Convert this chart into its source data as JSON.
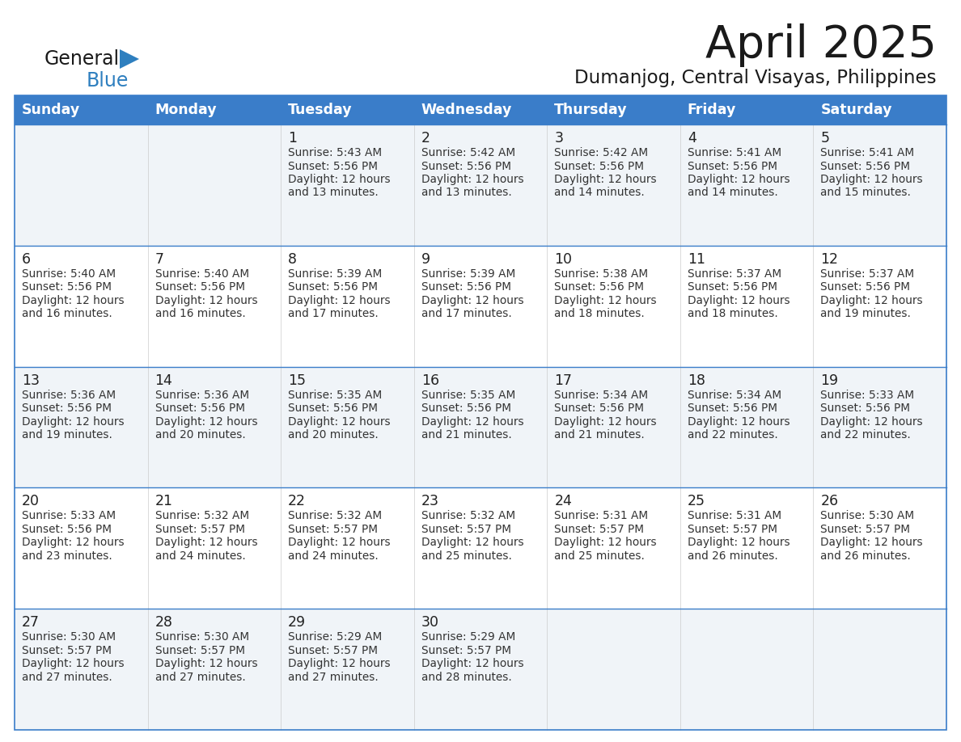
{
  "title": "April 2025",
  "subtitle": "Dumanjog, Central Visayas, Philippines",
  "days_of_week": [
    "Sunday",
    "Monday",
    "Tuesday",
    "Wednesday",
    "Thursday",
    "Friday",
    "Saturday"
  ],
  "header_bg_color": "#3A7DC9",
  "header_text_color": "#FFFFFF",
  "border_color": "#3A7DC9",
  "row_bg_even": "#F0F4F8",
  "row_bg_odd": "#FFFFFF",
  "text_color": "#333333",
  "day_num_color": "#222222",
  "logo_general_color": "#1a1a1a",
  "logo_blue_color": "#2E7FBF",
  "title_color": "#1a1a1a",
  "calendar_data": [
    [
      null,
      null,
      {
        "day": 1,
        "sunrise": "5:43 AM",
        "sunset": "5:56 PM",
        "daylight_hours": 12,
        "daylight_minutes": 13
      },
      {
        "day": 2,
        "sunrise": "5:42 AM",
        "sunset": "5:56 PM",
        "daylight_hours": 12,
        "daylight_minutes": 13
      },
      {
        "day": 3,
        "sunrise": "5:42 AM",
        "sunset": "5:56 PM",
        "daylight_hours": 12,
        "daylight_minutes": 14
      },
      {
        "day": 4,
        "sunrise": "5:41 AM",
        "sunset": "5:56 PM",
        "daylight_hours": 12,
        "daylight_minutes": 14
      },
      {
        "day": 5,
        "sunrise": "5:41 AM",
        "sunset": "5:56 PM",
        "daylight_hours": 12,
        "daylight_minutes": 15
      }
    ],
    [
      {
        "day": 6,
        "sunrise": "5:40 AM",
        "sunset": "5:56 PM",
        "daylight_hours": 12,
        "daylight_minutes": 16
      },
      {
        "day": 7,
        "sunrise": "5:40 AM",
        "sunset": "5:56 PM",
        "daylight_hours": 12,
        "daylight_minutes": 16
      },
      {
        "day": 8,
        "sunrise": "5:39 AM",
        "sunset": "5:56 PM",
        "daylight_hours": 12,
        "daylight_minutes": 17
      },
      {
        "day": 9,
        "sunrise": "5:39 AM",
        "sunset": "5:56 PM",
        "daylight_hours": 12,
        "daylight_minutes": 17
      },
      {
        "day": 10,
        "sunrise": "5:38 AM",
        "sunset": "5:56 PM",
        "daylight_hours": 12,
        "daylight_minutes": 18
      },
      {
        "day": 11,
        "sunrise": "5:37 AM",
        "sunset": "5:56 PM",
        "daylight_hours": 12,
        "daylight_minutes": 18
      },
      {
        "day": 12,
        "sunrise": "5:37 AM",
        "sunset": "5:56 PM",
        "daylight_hours": 12,
        "daylight_minutes": 19
      }
    ],
    [
      {
        "day": 13,
        "sunrise": "5:36 AM",
        "sunset": "5:56 PM",
        "daylight_hours": 12,
        "daylight_minutes": 19
      },
      {
        "day": 14,
        "sunrise": "5:36 AM",
        "sunset": "5:56 PM",
        "daylight_hours": 12,
        "daylight_minutes": 20
      },
      {
        "day": 15,
        "sunrise": "5:35 AM",
        "sunset": "5:56 PM",
        "daylight_hours": 12,
        "daylight_minutes": 20
      },
      {
        "day": 16,
        "sunrise": "5:35 AM",
        "sunset": "5:56 PM",
        "daylight_hours": 12,
        "daylight_minutes": 21
      },
      {
        "day": 17,
        "sunrise": "5:34 AM",
        "sunset": "5:56 PM",
        "daylight_hours": 12,
        "daylight_minutes": 21
      },
      {
        "day": 18,
        "sunrise": "5:34 AM",
        "sunset": "5:56 PM",
        "daylight_hours": 12,
        "daylight_minutes": 22
      },
      {
        "day": 19,
        "sunrise": "5:33 AM",
        "sunset": "5:56 PM",
        "daylight_hours": 12,
        "daylight_minutes": 22
      }
    ],
    [
      {
        "day": 20,
        "sunrise": "5:33 AM",
        "sunset": "5:56 PM",
        "daylight_hours": 12,
        "daylight_minutes": 23
      },
      {
        "day": 21,
        "sunrise": "5:32 AM",
        "sunset": "5:57 PM",
        "daylight_hours": 12,
        "daylight_minutes": 24
      },
      {
        "day": 22,
        "sunrise": "5:32 AM",
        "sunset": "5:57 PM",
        "daylight_hours": 12,
        "daylight_minutes": 24
      },
      {
        "day": 23,
        "sunrise": "5:32 AM",
        "sunset": "5:57 PM",
        "daylight_hours": 12,
        "daylight_minutes": 25
      },
      {
        "day": 24,
        "sunrise": "5:31 AM",
        "sunset": "5:57 PM",
        "daylight_hours": 12,
        "daylight_minutes": 25
      },
      {
        "day": 25,
        "sunrise": "5:31 AM",
        "sunset": "5:57 PM",
        "daylight_hours": 12,
        "daylight_minutes": 26
      },
      {
        "day": 26,
        "sunrise": "5:30 AM",
        "sunset": "5:57 PM",
        "daylight_hours": 12,
        "daylight_minutes": 26
      }
    ],
    [
      {
        "day": 27,
        "sunrise": "5:30 AM",
        "sunset": "5:57 PM",
        "daylight_hours": 12,
        "daylight_minutes": 27
      },
      {
        "day": 28,
        "sunrise": "5:30 AM",
        "sunset": "5:57 PM",
        "daylight_hours": 12,
        "daylight_minutes": 27
      },
      {
        "day": 29,
        "sunrise": "5:29 AM",
        "sunset": "5:57 PM",
        "daylight_hours": 12,
        "daylight_minutes": 27
      },
      {
        "day": 30,
        "sunrise": "5:29 AM",
        "sunset": "5:57 PM",
        "daylight_hours": 12,
        "daylight_minutes": 28
      },
      null,
      null,
      null
    ]
  ],
  "fig_width": 11.88,
  "fig_height": 9.18,
  "fig_dpi": 100
}
